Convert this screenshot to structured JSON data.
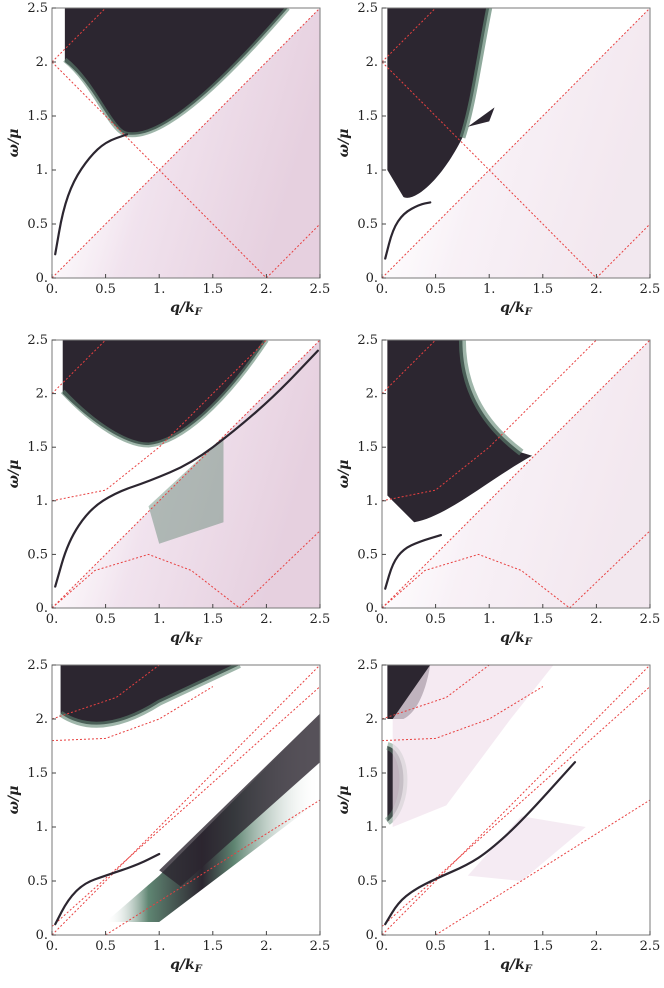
{
  "colors": {
    "dark": "#2c2630",
    "mid": "#5f8572",
    "light": "#f1e3ee",
    "guide": "#e84040",
    "frame": "#7a7a7a"
  },
  "axes": {
    "xlabel_q": "q/",
    "xlabel_k": "k",
    "xlabel_F": "F",
    "ylabel": "ω/μ",
    "x_ticks": [
      "0.",
      "0.5",
      "1.",
      "1.5",
      "2.",
      "2.5"
    ],
    "y_ticks": [
      "0.",
      "0.5",
      "1.",
      "1.5",
      "2.",
      "2.5"
    ]
  },
  "chart_data": [
    {
      "type": "heatmap",
      "panel": "top-left",
      "xlim": [
        0,
        2.5
      ],
      "ylim": [
        0,
        2.5
      ],
      "features": {
        "continuum_upper": {
          "x_start": 0.12,
          "lower_edge_min": 1.33,
          "lower_edge_min_x": 0.7
        },
        "continuum_lower": {
          "description_points": [
            [
              0,
              0
            ],
            [
              2.5,
              2.5
            ],
            [
              2.5,
              0
            ]
          ]
        },
        "plasmon": [
          [
            0.03,
            0.22
          ],
          [
            0.1,
            0.62
          ],
          [
            0.2,
            0.9
          ],
          [
            0.35,
            1.12
          ],
          [
            0.5,
            1.26
          ],
          [
            0.7,
            1.33
          ]
        ]
      },
      "guides": [
        {
          "points": [
            [
              0,
              0
            ],
            [
              2.5,
              2.5
            ]
          ]
        },
        {
          "points": [
            [
              0,
              2
            ],
            [
              2,
              0
            ]
          ]
        },
        {
          "points": [
            [
              0,
              2
            ],
            [
              0.5,
              2.5
            ]
          ]
        },
        {
          "points": [
            [
              2,
              0
            ],
            [
              2.5,
              0.5
            ]
          ]
        }
      ]
    },
    {
      "type": "heatmap",
      "panel": "top-right",
      "xlim": [
        0,
        2.5
      ],
      "ylim": [
        0,
        2.5
      ],
      "features": {
        "continuum_upper": {
          "x_start": 0.05
        },
        "plasmon": [
          [
            0.03,
            0.18
          ],
          [
            0.1,
            0.45
          ],
          [
            0.2,
            0.6
          ],
          [
            0.35,
            0.68
          ],
          [
            0.45,
            0.7
          ]
        ]
      },
      "guides": [
        {
          "points": [
            [
              0,
              0
            ],
            [
              2.5,
              2.5
            ]
          ]
        },
        {
          "points": [
            [
              0,
              2
            ],
            [
              2,
              0
            ]
          ]
        },
        {
          "points": [
            [
              0,
              2
            ],
            [
              0.5,
              2.5
            ]
          ]
        },
        {
          "points": [
            [
              2,
              0
            ],
            [
              2.5,
              0.5
            ]
          ]
        }
      ]
    },
    {
      "type": "heatmap",
      "panel": "middle-left",
      "xlim": [
        0,
        2.5
      ],
      "ylim": [
        0,
        2.5
      ],
      "features": {
        "continuum_upper": {
          "lower_edge_min": 1.52,
          "lower_edge_min_x": 0.9
        },
        "plasmon": [
          [
            0.03,
            0.2
          ],
          [
            0.15,
            0.62
          ],
          [
            0.35,
            0.92
          ],
          [
            0.6,
            1.08
          ],
          [
            0.9,
            1.18
          ],
          [
            1.3,
            1.35
          ],
          [
            1.7,
            1.65
          ],
          [
            2.1,
            2.0
          ],
          [
            2.48,
            2.4
          ]
        ]
      },
      "guides": [
        {
          "points": [
            [
              0,
              0
            ],
            [
              2.5,
              2.5
            ]
          ]
        },
        {
          "points": [
            [
              0,
              1
            ],
            [
              0.5,
              1.1
            ],
            [
              1,
              1.5
            ],
            [
              1.5,
              2.0
            ],
            [
              2.0,
              2.5
            ]
          ]
        },
        {
          "points": [
            [
              0,
              0
            ],
            [
              0.4,
              0.35
            ],
            [
              0.9,
              0.5
            ],
            [
              1.3,
              0.35
            ],
            [
              1.75,
              0
            ]
          ]
        },
        {
          "points": [
            [
              1.75,
              0
            ],
            [
              2.5,
              0.72
            ]
          ]
        },
        {
          "points": [
            [
              0,
              2
            ],
            [
              0.5,
              2.5
            ]
          ]
        }
      ]
    },
    {
      "type": "heatmap",
      "panel": "middle-right",
      "xlim": [
        0,
        2.5
      ],
      "ylim": [
        0,
        2.5
      ],
      "features": {
        "continuum_upper": {
          "lower_edge_min": 0.8,
          "lower_edge_min_x": 0.3
        },
        "plasmon": [
          [
            0.03,
            0.18
          ],
          [
            0.1,
            0.42
          ],
          [
            0.2,
            0.55
          ],
          [
            0.35,
            0.62
          ],
          [
            0.55,
            0.68
          ]
        ]
      },
      "guides": [
        {
          "points": [
            [
              0,
              0
            ],
            [
              2.5,
              2.5
            ]
          ]
        },
        {
          "points": [
            [
              0,
              1
            ],
            [
              0.5,
              1.1
            ],
            [
              1,
              1.5
            ],
            [
              1.5,
              2.0
            ],
            [
              2.0,
              2.5
            ]
          ]
        },
        {
          "points": [
            [
              0,
              0
            ],
            [
              0.4,
              0.35
            ],
            [
              0.9,
              0.5
            ],
            [
              1.3,
              0.35
            ],
            [
              1.75,
              0
            ]
          ]
        },
        {
          "points": [
            [
              1.75,
              0
            ],
            [
              2.5,
              0.72
            ]
          ]
        },
        {
          "points": [
            [
              0,
              2
            ],
            [
              0.5,
              2.5
            ]
          ]
        }
      ]
    },
    {
      "type": "heatmap",
      "panel": "bottom-left",
      "xlim": [
        0,
        2.5
      ],
      "ylim": [
        0,
        2.5
      ],
      "features": {
        "continuum_upper": {
          "lower_edge_min": 1.92,
          "lower_edge_min_x": 0.4
        },
        "plasmon": [
          [
            0.03,
            0.1
          ],
          [
            0.15,
            0.33
          ],
          [
            0.3,
            0.48
          ],
          [
            0.5,
            0.55
          ],
          [
            0.8,
            0.65
          ],
          [
            1.0,
            0.75
          ]
        ]
      },
      "guides": [
        {
          "points": [
            [
              0,
              0
            ],
            [
              2.5,
              2.5
            ]
          ]
        },
        {
          "points": [
            [
              0,
              0.08
            ],
            [
              2.5,
              2.3
            ]
          ]
        },
        {
          "points": [
            [
              0.5,
              0
            ],
            [
              2.5,
              1.25
            ]
          ]
        },
        {
          "points": [
            [
              0,
              1.8
            ],
            [
              0.5,
              1.82
            ],
            [
              1.0,
              2.0
            ],
            [
              1.5,
              2.3
            ]
          ]
        },
        {
          "points": [
            [
              0,
              2
            ],
            [
              0.6,
              2.2
            ],
            [
              1.0,
              2.5
            ]
          ]
        }
      ]
    },
    {
      "type": "heatmap",
      "panel": "bottom-right",
      "xlim": [
        0,
        2.5
      ],
      "ylim": [
        0,
        2.5
      ],
      "features": {
        "continuum_upper": {
          "x_start": 0.05
        },
        "plasmon": [
          [
            0.03,
            0.1
          ],
          [
            0.15,
            0.3
          ],
          [
            0.3,
            0.42
          ],
          [
            0.5,
            0.52
          ],
          [
            0.8,
            0.65
          ],
          [
            1.0,
            0.78
          ],
          [
            1.3,
            1.05
          ],
          [
            1.8,
            1.6
          ]
        ]
      },
      "guides": [
        {
          "points": [
            [
              0,
              0
            ],
            [
              2.5,
              2.5
            ]
          ]
        },
        {
          "points": [
            [
              0,
              0.08
            ],
            [
              2.5,
              2.3
            ]
          ]
        },
        {
          "points": [
            [
              0.5,
              0
            ],
            [
              2.5,
              1.25
            ]
          ]
        },
        {
          "points": [
            [
              0,
              1.8
            ],
            [
              0.5,
              1.82
            ],
            [
              1.0,
              2.0
            ],
            [
              1.5,
              2.3
            ]
          ]
        },
        {
          "points": [
            [
              0,
              2
            ],
            [
              0.6,
              2.2
            ],
            [
              1.0,
              2.5
            ]
          ]
        }
      ]
    }
  ]
}
